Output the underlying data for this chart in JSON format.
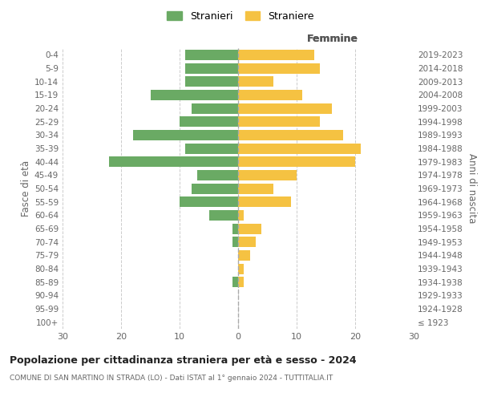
{
  "age_groups": [
    "100+",
    "95-99",
    "90-94",
    "85-89",
    "80-84",
    "75-79",
    "70-74",
    "65-69",
    "60-64",
    "55-59",
    "50-54",
    "45-49",
    "40-44",
    "35-39",
    "30-34",
    "25-29",
    "20-24",
    "15-19",
    "10-14",
    "5-9",
    "0-4"
  ],
  "birth_years": [
    "≤ 1923",
    "1924-1928",
    "1929-1933",
    "1934-1938",
    "1939-1943",
    "1944-1948",
    "1949-1953",
    "1954-1958",
    "1959-1963",
    "1964-1968",
    "1969-1973",
    "1974-1978",
    "1979-1983",
    "1984-1988",
    "1989-1993",
    "1994-1998",
    "1999-2003",
    "2004-2008",
    "2009-2013",
    "2014-2018",
    "2019-2023"
  ],
  "males": [
    0,
    0,
    0,
    1,
    0,
    0,
    1,
    1,
    5,
    10,
    8,
    7,
    22,
    9,
    18,
    10,
    8,
    15,
    9,
    9,
    9
  ],
  "females": [
    0,
    0,
    0,
    1,
    1,
    2,
    3,
    4,
    1,
    9,
    6,
    10,
    20,
    21,
    18,
    14,
    16,
    11,
    6,
    14,
    13
  ],
  "male_color": "#6aaa64",
  "female_color": "#f5c242",
  "background_color": "#ffffff",
  "grid_color": "#cccccc",
  "title": "Popolazione per cittadinanza straniera per età e sesso - 2024",
  "subtitle": "COMUNE DI SAN MARTINO IN STRADA (LO) - Dati ISTAT al 1° gennaio 2024 - TUTTITALIA.IT",
  "xlabel_right": "Femmine",
  "ylabel_left": "Fasce di età",
  "ylabel_right": "Anni di nascita",
  "legend_stranieri": "Stranieri",
  "legend_straniere": "Straniere",
  "xlim": 30
}
